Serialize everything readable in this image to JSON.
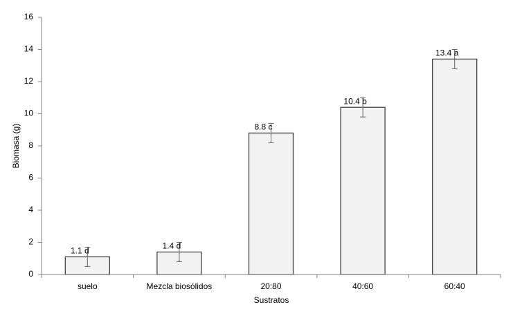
{
  "chart_data": {
    "type": "bar",
    "x_label": "Sustratos",
    "y_label": "Biomasa (g)",
    "categories": [
      "suelo",
      "Mezcla biosólidos",
      "20:80",
      "40:60",
      "60:40"
    ],
    "values": [
      1.1,
      1.4,
      8.8,
      10.4,
      13.4
    ],
    "value_labels": [
      "1.1 d",
      "1.4 d",
      "8.8 c",
      "10.4 b",
      "13.4 a"
    ],
    "errors": [
      0.6,
      0.6,
      0.6,
      0.6,
      0.6
    ],
    "color": "#f2f2f2",
    "edge_color": "#404040",
    "ylim": [
      0,
      16
    ],
    "yticks": [
      0,
      2,
      4,
      6,
      8,
      10,
      12,
      14,
      16
    ],
    "grid": false
  }
}
